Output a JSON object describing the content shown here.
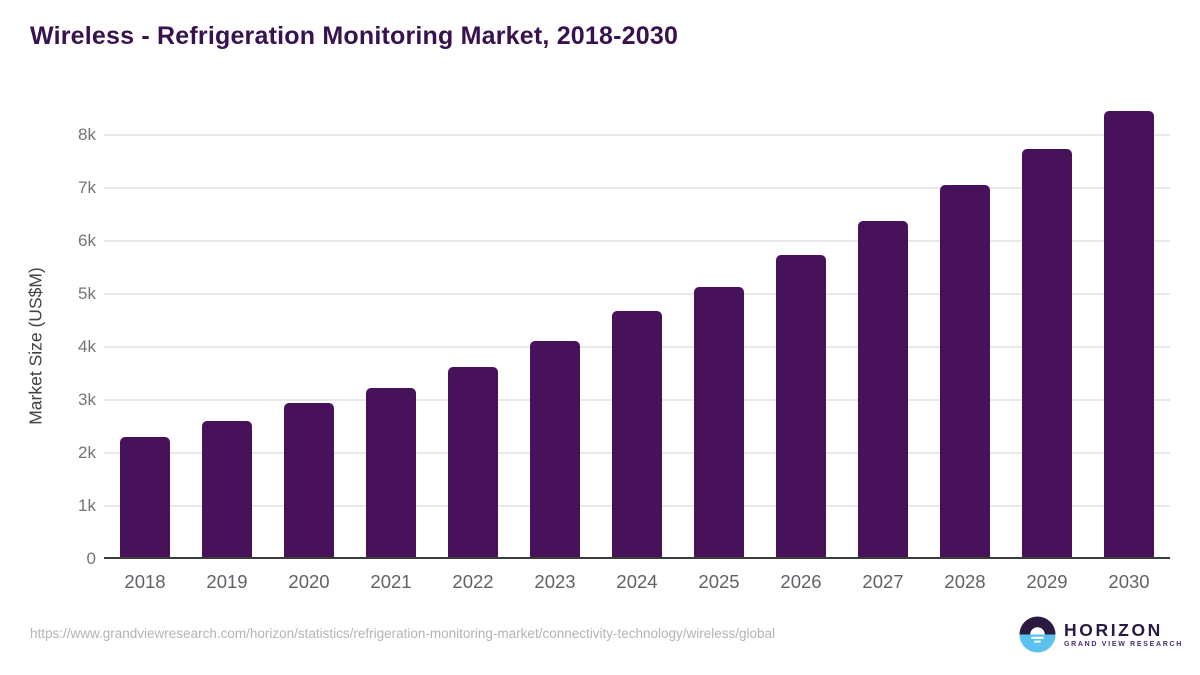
{
  "header": {
    "title": "Wireless - Refrigeration Monitoring Market, 2018-2030",
    "title_color": "#38114f"
  },
  "chart_data": {
    "type": "bar",
    "title": "Wireless - Refrigeration Monitoring Market, 2018-2030",
    "categories": [
      "2018",
      "2019",
      "2020",
      "2021",
      "2022",
      "2023",
      "2024",
      "2025",
      "2026",
      "2027",
      "2028",
      "2029",
      "2030"
    ],
    "values": [
      2300,
      2610,
      2945,
      3225,
      3625,
      4100,
      4665,
      5135,
      5730,
      6365,
      7040,
      7730,
      8450
    ],
    "xlabel": "",
    "ylabel": "Market Size (US$M)",
    "ylim": [
      0,
      8500
    ],
    "yticks": [
      {
        "value": 0,
        "label": "0"
      },
      {
        "value": 1000,
        "label": "1k"
      },
      {
        "value": 2000,
        "label": "2k"
      },
      {
        "value": 3000,
        "label": "3k"
      },
      {
        "value": 4000,
        "label": "4k"
      },
      {
        "value": 5000,
        "label": "5k"
      },
      {
        "value": 6000,
        "label": "6k"
      },
      {
        "value": 7000,
        "label": "7k"
      },
      {
        "value": 8000,
        "label": "8k"
      }
    ],
    "grid": true,
    "legend": false,
    "bar_color": "#471259",
    "gridline_color": "#e9e9e9",
    "axis_line_color": "#3c3c3c"
  },
  "footer": {
    "source_url": "https://www.grandviewresearch.com/horizon/statistics/refrigeration-monitoring-market/connectivity-technology/wireless/global",
    "logo": {
      "name": "HORIZON",
      "subtitle": "GRAND VIEW RESEARCH",
      "navy_color": "#2a1a42",
      "blue_color": "#5bc2ee",
      "icon": "sun-horizon-icon"
    }
  }
}
